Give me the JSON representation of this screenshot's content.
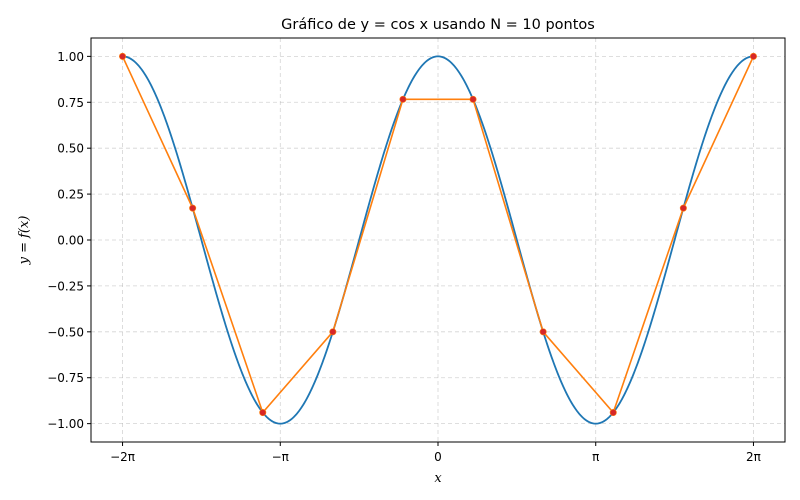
{
  "chart_data": {
    "type": "line",
    "title": "Gráfico de y = cos x usando N = 10 pontos",
    "xlabel": "x",
    "ylabel": "y = f(x)",
    "xlim": [
      -6.9115,
      6.9115
    ],
    "ylim": [
      -1.1,
      1.1
    ],
    "grid": true,
    "xticks": [
      {
        "value": -6.283185307,
        "label": "−2π"
      },
      {
        "value": -3.141592654,
        "label": "−π"
      },
      {
        "value": 0,
        "label": "0"
      },
      {
        "value": 3.141592654,
        "label": "π"
      },
      {
        "value": 6.283185307,
        "label": "2π"
      }
    ],
    "yticks": [
      {
        "value": 1.0,
        "label": "1.00"
      },
      {
        "value": 0.75,
        "label": "0.75"
      },
      {
        "value": 0.5,
        "label": "0.50"
      },
      {
        "value": 0.25,
        "label": "0.25"
      },
      {
        "value": 0.0,
        "label": "0.00"
      },
      {
        "value": -0.25,
        "label": "−0.25"
      },
      {
        "value": -0.5,
        "label": "−0.50"
      },
      {
        "value": -0.75,
        "label": "−0.75"
      },
      {
        "value": -1.0,
        "label": "−1.00"
      }
    ],
    "series": [
      {
        "kind": "function",
        "function": "cos",
        "x_range": [
          -6.283185307,
          6.283185307
        ],
        "color": "#1f77b4"
      },
      {
        "kind": "polyline",
        "color": "#ff7f0e",
        "marker_color": "#d62728",
        "x": [
          -6.283185,
          -4.886922,
          -3.490659,
          -2.094395,
          -0.698132,
          0.698132,
          2.094395,
          3.490659,
          4.886922,
          6.283185
        ],
        "y": [
          1.0,
          0.173648,
          -0.939693,
          -0.5,
          0.766044,
          0.766044,
          -0.5,
          -0.939693,
          0.173648,
          1.0
        ]
      }
    ]
  }
}
